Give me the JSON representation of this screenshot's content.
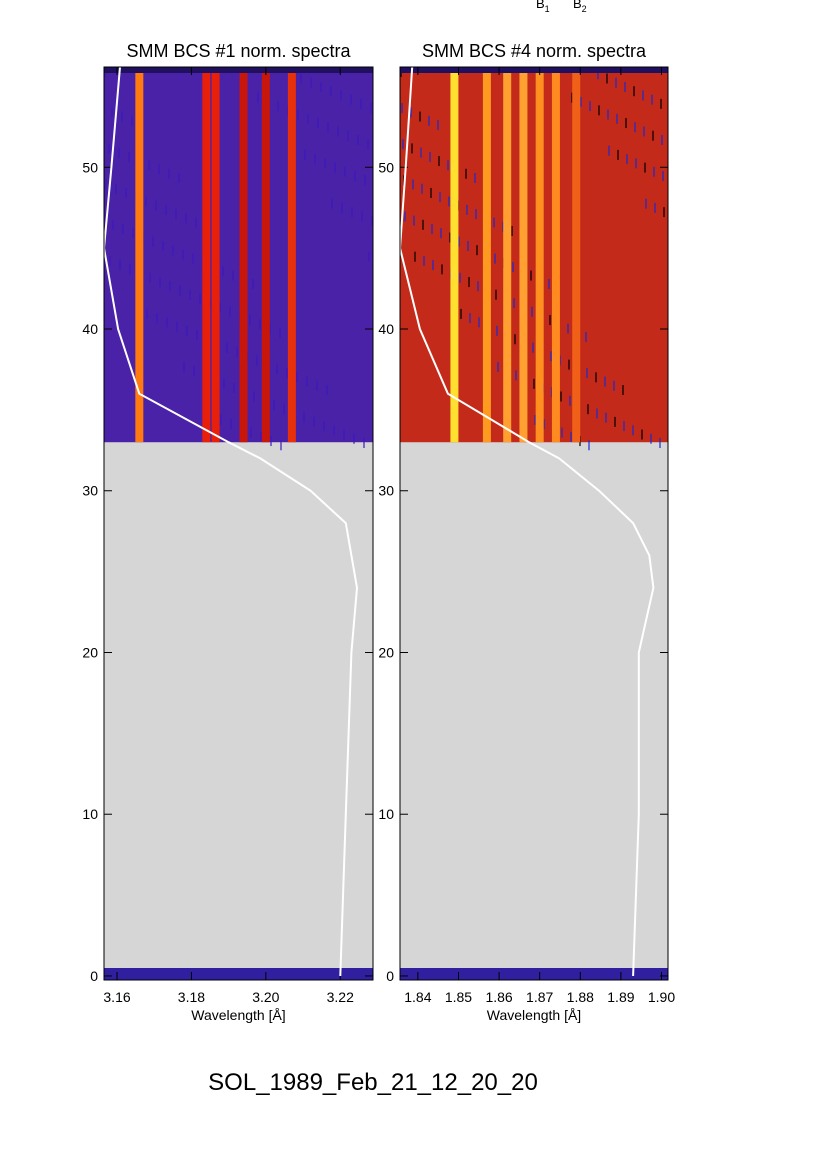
{
  "top_labels": [
    {
      "text": "B",
      "sub": "1"
    },
    {
      "text": "B",
      "sub": "2"
    }
  ],
  "footer": "SOL_1989_Feb_21_12_20_20",
  "chart_data": [
    {
      "type": "heatmap",
      "title": "SMM BCS #1 norm. spectra",
      "xlabel": "Wavelength [Å]",
      "xlim": [
        3.1565,
        3.2288
      ],
      "xticks": [
        3.16,
        3.18,
        {
          "value": 3.2,
          "label": "3.20"
        },
        3.22
      ],
      "ylim": [
        -0.25,
        56.2
      ],
      "yticks": [
        0,
        10,
        20,
        30,
        40,
        50
      ],
      "image_start": 33,
      "image_color": "#4a22a8",
      "empty_color": "#d6d6d6",
      "lines": [
        {
          "x": 3.166,
          "color": "#ff7a10"
        },
        {
          "x": 3.184,
          "color": "#e8200a"
        },
        {
          "x": 3.1865,
          "color": "#e8200a"
        },
        {
          "x": 3.194,
          "color": "#c8160a"
        },
        {
          "x": 3.2,
          "color": "#c8160a"
        },
        {
          "x": 3.207,
          "color": "#e8300a"
        }
      ],
      "light_curve": {
        "y": [
          56.2,
          50,
          45,
          40,
          36,
          33,
          32,
          30,
          28,
          26,
          24,
          20,
          10,
          0
        ],
        "x": [
          3.1608,
          3.1585,
          3.1565,
          3.1603,
          3.166,
          3.19,
          3.1985,
          3.212,
          3.2215,
          3.223,
          3.2245,
          3.223,
          3.2215,
          3.22
        ]
      }
    },
    {
      "type": "heatmap",
      "title": "SMM BCS #4 norm. spectra",
      "xlabel": "Wavelength [Å]",
      "xlim": [
        1.8356,
        1.9016
      ],
      "xticks": [
        1.84,
        1.85,
        1.86,
        1.87,
        1.88,
        1.89,
        {
          "value": 1.9,
          "label": "1.90"
        }
      ],
      "ylim": [
        -0.25,
        56.2
      ],
      "yticks": [
        0,
        10,
        20,
        30,
        40,
        50
      ],
      "image_start": 33,
      "image_color": "#c42a1a",
      "empty_color": "#d6d6d6",
      "lines": [
        {
          "x": 1.849,
          "color": "#ffe030"
        },
        {
          "x": 1.857,
          "color": "#ff9a20"
        },
        {
          "x": 1.862,
          "color": "#ffa030"
        },
        {
          "x": 1.866,
          "color": "#ffa030"
        },
        {
          "x": 1.87,
          "color": "#ff9020"
        },
        {
          "x": 1.874,
          "color": "#ff8a20"
        },
        {
          "x": 1.879,
          "color": "#f06018"
        }
      ],
      "light_curve": {
        "y": [
          56.2,
          50,
          45,
          40,
          36,
          33,
          32,
          30,
          28,
          26,
          24,
          20,
          10,
          0
        ],
        "x": [
          1.8386,
          1.837,
          1.8356,
          1.8405,
          1.8474,
          1.8674,
          1.8748,
          1.8846,
          1.893,
          1.897,
          1.898,
          1.8944,
          1.8944,
          1.893
        ]
      }
    }
  ]
}
